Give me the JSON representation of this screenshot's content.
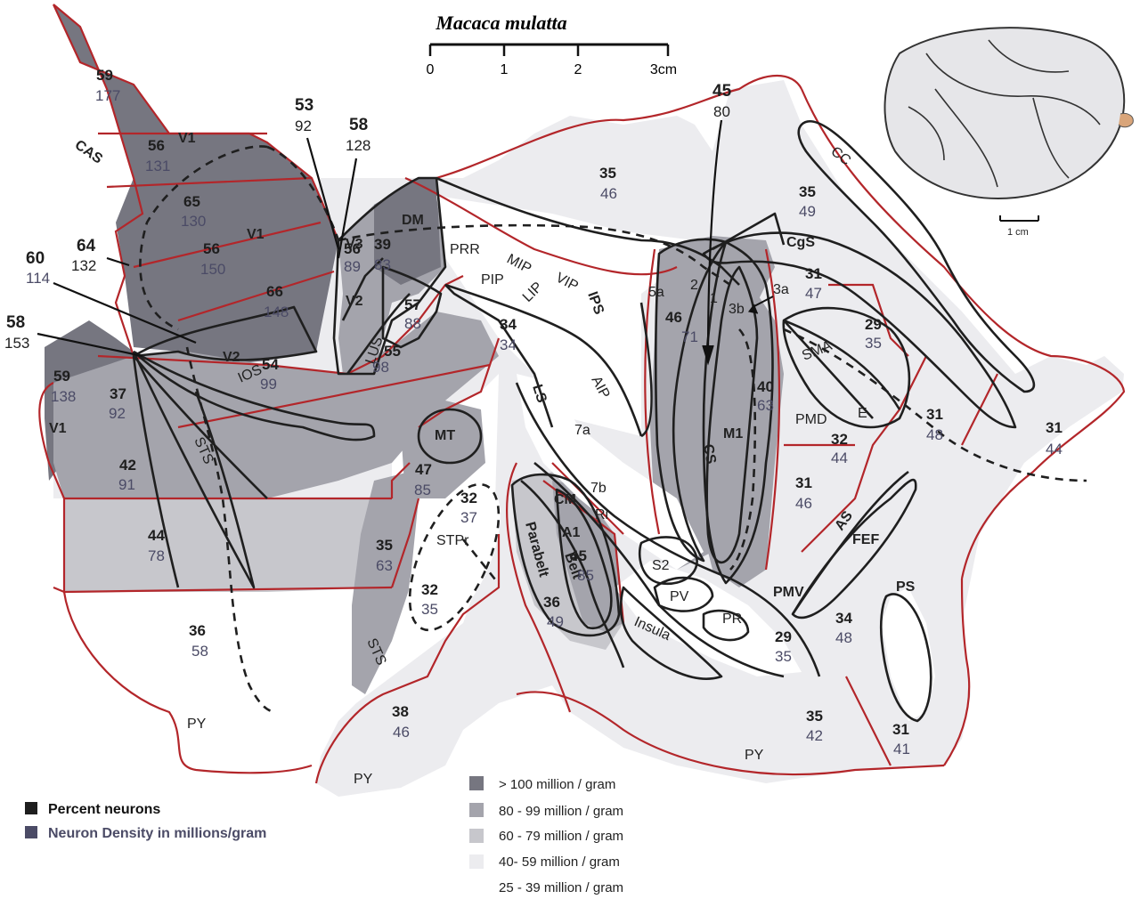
{
  "title": "Macaca mulatta",
  "scale_bar": {
    "ticks": [
      "0",
      "1",
      "2",
      "3cm"
    ]
  },
  "inset_scale": "1 cm",
  "colors": {
    "d100": "#767680",
    "d80": "#a4a4ac",
    "d60": "#c7c7cc",
    "d40": "#ececef",
    "d25": "#ffffff",
    "border_red": "#b3262a",
    "density_text": "#4b4b66"
  },
  "regions": [
    {
      "pct": "59",
      "dens": "177"
    },
    {
      "pct": "56",
      "dens": "131"
    },
    {
      "pct": "65",
      "dens": "130"
    },
    {
      "pct": "56",
      "dens": "150"
    },
    {
      "pct": "66",
      "dens": "148"
    },
    {
      "pct": "56",
      "dens": "89"
    },
    {
      "pct": "39",
      "dens": "83"
    },
    {
      "pct": "57",
      "dens": "88"
    },
    {
      "pct": "55",
      "dens": "98"
    },
    {
      "pct": "54",
      "dens": "99"
    },
    {
      "pct": "59",
      "dens": "138"
    },
    {
      "pct": "37",
      "dens": "92"
    },
    {
      "pct": "42",
      "dens": "91"
    },
    {
      "pct": "44",
      "dens": "78"
    },
    {
      "pct": "47",
      "dens": "85"
    },
    {
      "pct": "35",
      "dens": "63"
    },
    {
      "pct": "32",
      "dens": "37"
    },
    {
      "pct": "32",
      "dens": "35"
    },
    {
      "pct": "36",
      "dens": "58"
    },
    {
      "pct": "38",
      "dens": "46"
    },
    {
      "pct": "35",
      "dens": "46"
    },
    {
      "pct": "34",
      "dens": "34"
    },
    {
      "pct": "45",
      "dens": "85"
    },
    {
      "pct": "36",
      "dens": "49"
    },
    {
      "pct": "46",
      "dens": "71"
    },
    {
      "pct": "40",
      "dens": "63"
    },
    {
      "pct": "35",
      "dens": "49"
    },
    {
      "pct": "31",
      "dens": "47"
    },
    {
      "pct": "29",
      "dens": "35"
    },
    {
      "pct": "32",
      "dens": "44"
    },
    {
      "pct": "31",
      "dens": "46"
    },
    {
      "pct": "31",
      "dens": "48"
    },
    {
      "pct": "31",
      "dens": "44"
    },
    {
      "pct": "34",
      "dens": "48"
    },
    {
      "pct": "29",
      "dens": "35"
    },
    {
      "pct": "35",
      "dens": "42"
    },
    {
      "pct": "31",
      "dens": "41"
    }
  ],
  "callouts": [
    {
      "pct": "53",
      "dens": "92"
    },
    {
      "pct": "58",
      "dens": "128"
    },
    {
      "pct": "64",
      "dens": "132"
    },
    {
      "pct": "60",
      "dens": "114"
    },
    {
      "pct": "58",
      "dens": "153"
    },
    {
      "pct": "45",
      "dens": "80"
    }
  ],
  "area_labels": {
    "cas": "CAS",
    "v1": "V1",
    "v2": "V2",
    "v3": "V3",
    "dm": "DM",
    "lus": "LUS",
    "ios": "IOS",
    "sts": "STS",
    "mt": "MT",
    "stpr": "STPr",
    "py": "PY",
    "prr": "PRR",
    "mip": "MIP",
    "pip": "PIP",
    "lip": "LIP",
    "vip": "VIP",
    "ips": "IPS",
    "aip": "AIP",
    "ls": "LS",
    "a7a": "7a",
    "a7b": "7b",
    "a5a": "5a",
    "a2": "2",
    "a1": "1",
    "a3a": "3a",
    "a3b": "3b",
    "cc": "CC",
    "cgs": "CgS",
    "sma": "SMA",
    "e": "E",
    "pmd": "PMD",
    "m1": "M1",
    "cs": "CS",
    "as": "AS",
    "fef": "FEF",
    "pmv": "PMV",
    "ps": "PS",
    "cm": "CM",
    "a1aud": "A1",
    "ri": "Ri",
    "belt": "Belt",
    "parabelt": "Parabelt",
    "s2": "S2",
    "pv": "PV",
    "pr": "PR",
    "insula": "Insula"
  },
  "key": {
    "percent": "Percent neurons",
    "density": "Neuron Density in millions/gram"
  },
  "legend": [
    {
      "label": "> 100 million / gram",
      "color": "#767680"
    },
    {
      "label": "80 - 99 million / gram",
      "color": "#a4a4ac"
    },
    {
      "label": "60 - 79 million / gram",
      "color": "#c7c7cc"
    },
    {
      "label": "40- 59 million / gram",
      "color": "#ececef"
    },
    {
      "label": "25 - 39 million / gram",
      "color": "#ffffff"
    }
  ]
}
